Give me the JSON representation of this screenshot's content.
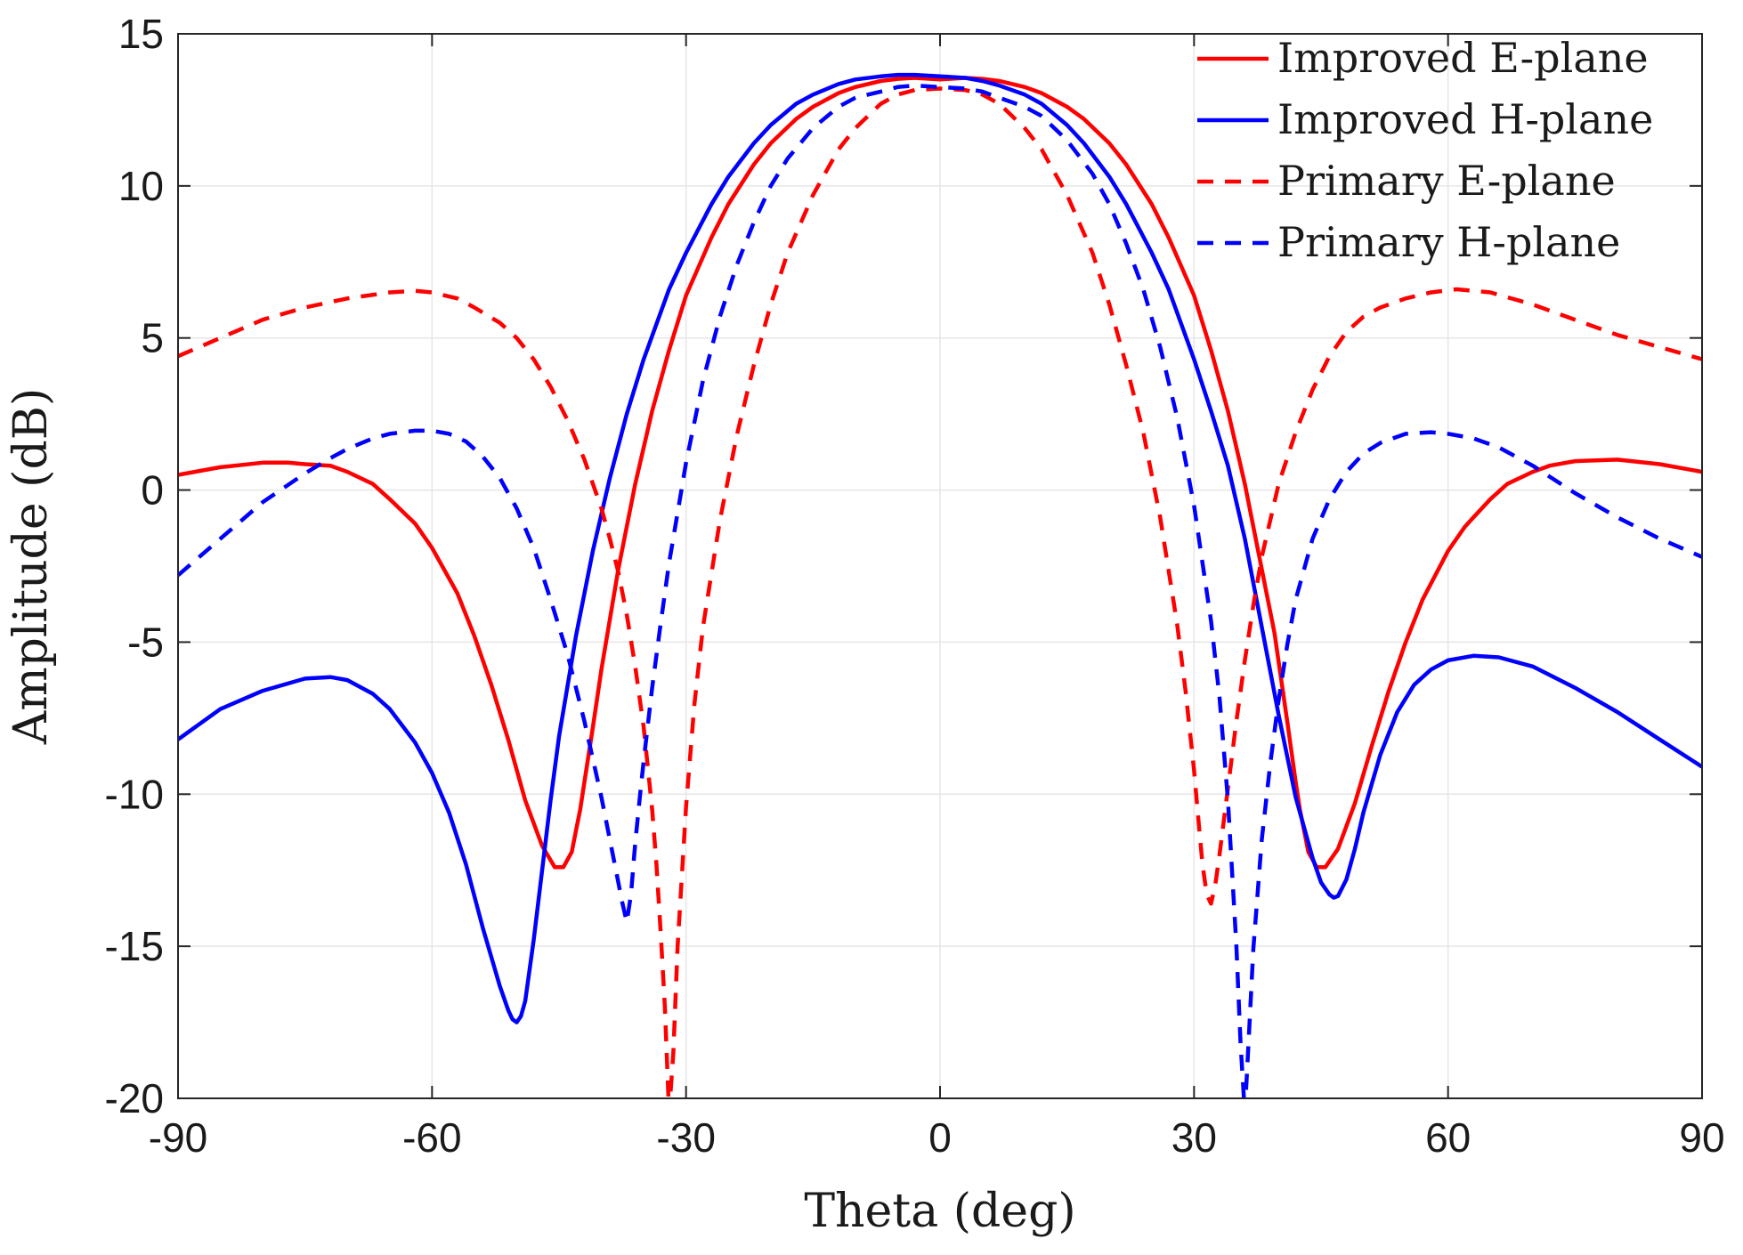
{
  "chart_data": {
    "type": "line",
    "xlabel": "Theta (deg)",
    "ylabel": "Amplitude (dB)",
    "xlim": [
      -90,
      90
    ],
    "ylim": [
      -20,
      15
    ],
    "xticks": [
      -90,
      -60,
      -30,
      0,
      30,
      60,
      90
    ],
    "yticks": [
      15,
      10,
      5,
      0,
      -5,
      -10,
      -15,
      -20
    ],
    "grid": true,
    "legend_position": "top-right",
    "series": [
      {
        "name": "Improved E-plane",
        "color": "#ff0000",
        "dash": "solid",
        "x": [
          -90,
          -85,
          -80,
          -77,
          -75,
          -72,
          -70,
          -67,
          -65,
          -62,
          -60,
          -57,
          -55,
          -53,
          -51,
          -49,
          -47,
          -45.5,
          -44.5,
          -43.5,
          -43,
          -42.5,
          -42,
          -41,
          -40,
          -38,
          -36,
          -34,
          -32,
          -30,
          -27,
          -25,
          -22,
          -20,
          -17,
          -15,
          -12,
          -10,
          -7,
          -5,
          -3,
          0,
          3,
          5,
          7,
          10,
          12,
          15,
          17,
          20,
          22,
          25,
          27,
          30,
          32,
          34,
          36,
          38,
          39.5,
          41,
          42,
          42.5,
          43,
          43.5,
          44.5,
          45.5,
          47,
          49,
          51,
          53,
          55,
          57,
          60,
          62,
          65,
          67,
          70,
          72,
          75,
          80,
          85,
          90
        ],
        "y": [
          0.5,
          0.75,
          0.9,
          0.9,
          0.85,
          0.8,
          0.6,
          0.2,
          -0.3,
          -1.1,
          -1.9,
          -3.4,
          -4.8,
          -6.4,
          -8.2,
          -10.2,
          -11.7,
          -12.4,
          -12.4,
          -11.9,
          -11.2,
          -10.5,
          -9.6,
          -7.8,
          -5.9,
          -2.6,
          0.2,
          2.6,
          4.6,
          6.4,
          8.3,
          9.4,
          10.7,
          11.4,
          12.2,
          12.6,
          13.05,
          13.25,
          13.45,
          13.52,
          13.55,
          13.5,
          13.55,
          13.52,
          13.45,
          13.25,
          13.05,
          12.6,
          12.2,
          11.4,
          10.7,
          9.4,
          8.3,
          6.4,
          4.6,
          2.6,
          0.2,
          -2.6,
          -4.7,
          -7.6,
          -9.6,
          -10.5,
          -11.2,
          -11.9,
          -12.4,
          -12.4,
          -11.8,
          -10.3,
          -8.4,
          -6.6,
          -5.0,
          -3.6,
          -2.0,
          -1.2,
          -0.3,
          0.2,
          0.6,
          0.8,
          0.95,
          1.0,
          0.85,
          0.6
        ]
      },
      {
        "name": "Improved H-plane",
        "color": "#0000ff",
        "dash": "solid",
        "x": [
          -90,
          -85,
          -80,
          -75,
          -72,
          -70,
          -67,
          -65,
          -62,
          -60,
          -58,
          -56,
          -54,
          -52,
          -51,
          -50.5,
          -50,
          -49.5,
          -49,
          -48,
          -47,
          -46,
          -45,
          -43,
          -41,
          -39,
          -37,
          -35,
          -32,
          -30,
          -27,
          -25,
          -22,
          -20,
          -17,
          -15,
          -12,
          -10,
          -7,
          -5,
          -3,
          0,
          3,
          5,
          7,
          10,
          12,
          15,
          17,
          20,
          22,
          25,
          27,
          30,
          32,
          34,
          36,
          38,
          40,
          42,
          44,
          45,
          46,
          46.5,
          47,
          48,
          49,
          50,
          52,
          54,
          56,
          58,
          60,
          63,
          66,
          70,
          75,
          80,
          85,
          90
        ],
        "y": [
          -8.2,
          -7.2,
          -6.6,
          -6.2,
          -6.15,
          -6.25,
          -6.7,
          -7.2,
          -8.3,
          -9.3,
          -10.6,
          -12.3,
          -14.4,
          -16.3,
          -17.1,
          -17.4,
          -17.5,
          -17.3,
          -16.8,
          -14.8,
          -12.5,
          -10.2,
          -8.1,
          -4.8,
          -2.0,
          0.4,
          2.5,
          4.3,
          6.6,
          7.8,
          9.4,
          10.3,
          11.4,
          12.0,
          12.7,
          13.0,
          13.35,
          13.5,
          13.6,
          13.65,
          13.65,
          13.6,
          13.55,
          13.45,
          13.3,
          13.0,
          12.7,
          12.0,
          11.4,
          10.3,
          9.4,
          7.8,
          6.6,
          4.3,
          2.6,
          0.8,
          -1.6,
          -4.5,
          -7.4,
          -10.1,
          -12.1,
          -12.9,
          -13.3,
          -13.4,
          -13.35,
          -12.8,
          -11.8,
          -10.6,
          -8.7,
          -7.3,
          -6.4,
          -5.9,
          -5.6,
          -5.45,
          -5.5,
          -5.8,
          -6.5,
          -7.3,
          -8.2,
          -9.1
        ]
      },
      {
        "name": "Primary E-plane",
        "color": "#ff0000",
        "dash": "dashed",
        "x": [
          -90,
          -85,
          -80,
          -75,
          -70,
          -65,
          -62,
          -60,
          -57,
          -55,
          -52,
          -50,
          -48,
          -46,
          -44,
          -42,
          -40,
          -39,
          -38,
          -37,
          -36,
          -35,
          -34,
          -33.5,
          -33,
          -32.5,
          -32,
          -31.5,
          -31,
          -30,
          -29,
          -28,
          -26,
          -24,
          -22,
          -20,
          -18,
          -15,
          -12,
          -10,
          -7,
          -5,
          -3,
          0,
          3,
          5,
          7,
          10,
          12,
          15,
          18,
          20,
          22,
          24,
          26,
          28,
          29,
          30,
          30.5,
          31,
          31.5,
          32,
          32.5,
          33,
          34,
          35,
          36,
          37,
          38,
          39,
          40,
          42,
          44,
          46,
          48,
          50,
          52,
          55,
          58,
          61,
          65,
          70,
          75,
          80,
          85,
          90
        ],
        "y": [
          4.4,
          5.0,
          5.6,
          6.0,
          6.3,
          6.5,
          6.55,
          6.5,
          6.3,
          6.0,
          5.5,
          5.0,
          4.3,
          3.4,
          2.3,
          1.0,
          -0.6,
          -1.6,
          -2.7,
          -4.1,
          -5.8,
          -7.8,
          -10.5,
          -12.3,
          -14.5,
          -17.0,
          -20.5,
          -18.5,
          -15.0,
          -10.4,
          -7.0,
          -4.5,
          -1.0,
          1.8,
          4.1,
          6.1,
          7.8,
          9.7,
          11.2,
          11.9,
          12.7,
          13.0,
          13.15,
          13.2,
          13.15,
          13.0,
          12.7,
          11.9,
          11.2,
          9.7,
          7.8,
          6.1,
          4.1,
          1.9,
          -0.9,
          -4.4,
          -6.6,
          -9.2,
          -10.8,
          -12.3,
          -13.3,
          -13.6,
          -13.0,
          -12.0,
          -9.8,
          -7.6,
          -5.6,
          -3.8,
          -2.2,
          -1.0,
          0.2,
          1.9,
          3.3,
          4.4,
          5.2,
          5.7,
          6.0,
          6.3,
          6.5,
          6.6,
          6.5,
          6.1,
          5.6,
          5.1,
          4.7,
          4.3
        ]
      },
      {
        "name": "Primary H-plane",
        "color": "#0000ff",
        "dash": "dashed",
        "x": [
          -90,
          -85,
          -80,
          -75,
          -72,
          -70,
          -67,
          -65,
          -62,
          -60,
          -58,
          -56,
          -54,
          -52,
          -50,
          -48,
          -46,
          -44,
          -42,
          -40,
          -39,
          -38,
          -37.5,
          -37,
          -36.5,
          -36,
          -35.5,
          -35,
          -34,
          -33,
          -32,
          -30,
          -28,
          -26,
          -24,
          -22,
          -20,
          -18,
          -15,
          -12,
          -10,
          -7,
          -5,
          -3,
          0,
          3,
          5,
          7,
          10,
          12,
          15,
          18,
          20,
          22,
          24,
          26,
          28,
          30,
          32,
          33,
          34,
          35,
          35.5,
          36,
          36.5,
          37,
          38,
          39,
          40,
          41,
          42,
          44,
          46,
          48,
          50,
          52,
          55,
          58,
          60,
          63,
          66,
          70,
          75,
          80,
          85,
          90
        ],
        "y": [
          -2.8,
          -1.6,
          -0.4,
          0.55,
          1.05,
          1.35,
          1.7,
          1.85,
          1.95,
          1.95,
          1.85,
          1.6,
          1.1,
          0.4,
          -0.6,
          -1.9,
          -3.6,
          -5.4,
          -7.6,
          -10.1,
          -11.5,
          -12.9,
          -13.6,
          -14.2,
          -13.3,
          -11.6,
          -10.2,
          -8.9,
          -6.5,
          -4.4,
          -2.4,
          0.9,
          3.6,
          5.7,
          7.4,
          8.8,
          10.0,
          10.9,
          11.9,
          12.6,
          12.9,
          13.1,
          13.25,
          13.3,
          13.25,
          13.2,
          13.1,
          12.9,
          12.6,
          12.3,
          11.5,
          10.4,
          9.4,
          8.1,
          6.6,
          4.7,
          2.4,
          -0.5,
          -4.3,
          -6.8,
          -10.2,
          -15.0,
          -18.2,
          -20.5,
          -17.8,
          -15.1,
          -11.5,
          -9.0,
          -6.9,
          -5.1,
          -3.6,
          -1.6,
          -0.3,
          0.6,
          1.2,
          1.55,
          1.85,
          1.9,
          1.85,
          1.7,
          1.4,
          0.8,
          -0.1,
          -0.9,
          -1.6,
          -2.2
        ]
      }
    ]
  }
}
